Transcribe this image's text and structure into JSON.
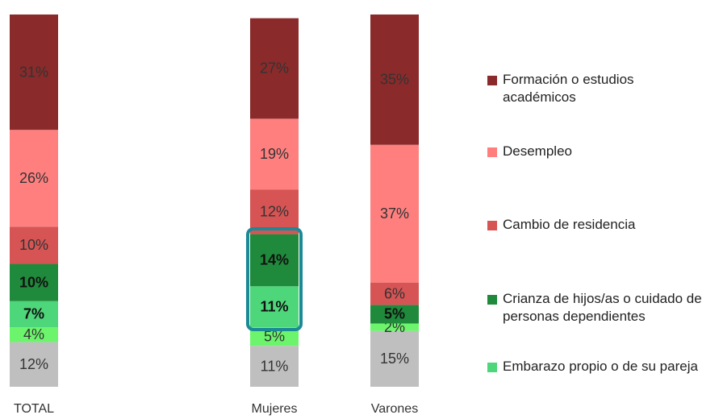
{
  "chart_data": {
    "type": "stacked_bar",
    "categories": [
      "TOTAL",
      null,
      "Mujeres",
      "Varones"
    ],
    "series": [
      {
        "color": "#bfbfbf",
        "values": [
          12,
          null,
          11,
          15
        ],
        "value_labels": [
          "12%",
          null,
          "11%",
          "15%"
        ]
      },
      {
        "color": "#6cf56c",
        "values": [
          4,
          null,
          5,
          2
        ],
        "value_labels": [
          "4%",
          null,
          "5%",
          "2%"
        ]
      },
      {
        "name": "Embarazo propio o de su pareja",
        "color": "#4dd67a",
        "values": [
          7,
          null,
          11,
          null
        ],
        "value_labels": [
          "7%",
          null,
          "11%",
          null
        ]
      },
      {
        "name": "Crianza de hijos/as o cuidado de personas dependientes",
        "color": "#1f8a3b",
        "values": [
          10,
          null,
          14,
          5
        ],
        "value_labels": [
          "10%",
          null,
          "14%",
          "5%"
        ]
      },
      {
        "name": "Cambio de residencia",
        "color": "#d65454",
        "values": [
          10,
          null,
          12,
          6
        ],
        "value_labels": [
          "10%",
          null,
          "12%",
          "6%"
        ]
      },
      {
        "name": "Desempleo",
        "color": "#ff7f7f",
        "values": [
          26,
          null,
          19,
          37
        ],
        "value_labels": [
          "26%",
          null,
          "19%",
          "37%"
        ]
      },
      {
        "name": "Formación o estudios académicos",
        "color": "#8b2a2a",
        "values": [
          31,
          null,
          27,
          35
        ],
        "value_labels": [
          "31%",
          null,
          "27%",
          "35%"
        ]
      }
    ]
  }
}
